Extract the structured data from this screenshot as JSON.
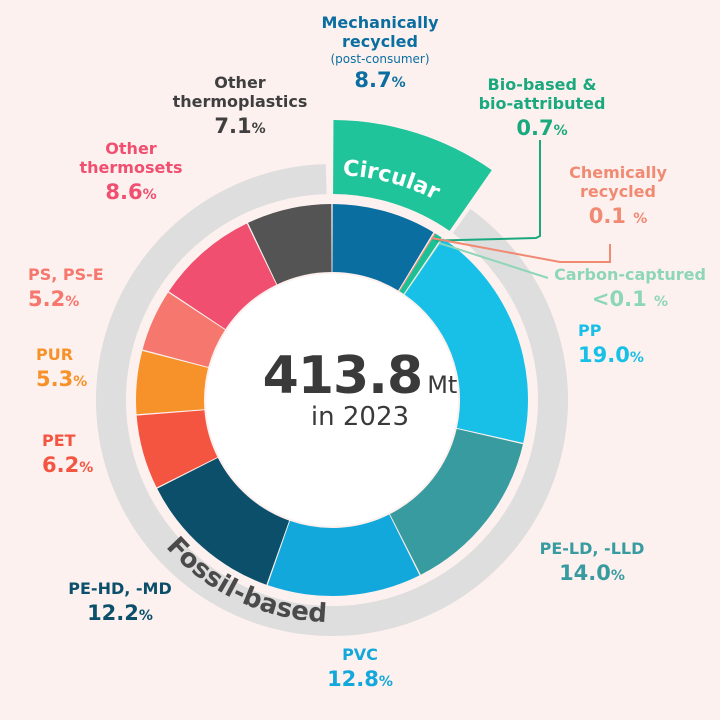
{
  "chart_data": {
    "type": "donut",
    "title_value": "413.8",
    "title_unit": "Mt",
    "title_sub": "in 2023",
    "groups": [
      {
        "name": "Circular",
        "share": 9.5
      },
      {
        "name": "Fossil-based",
        "share": 90.5
      }
    ],
    "segments": [
      {
        "name": "Mechanically recycled",
        "sublabel": "(post-consumer)",
        "value": 8.7,
        "value_text": "8.7",
        "color": "#0b6ea0",
        "group": "Circular"
      },
      {
        "name": "Chemically recycled",
        "value": 0.1,
        "value_text": "0.1",
        "color": "#f08a73",
        "group": "Circular"
      },
      {
        "name": "Bio-based & bio-attributed",
        "value": 0.7,
        "value_text": "0.7",
        "color": "#1dbf95",
        "group": "Circular"
      },
      {
        "name": "Carbon-captured",
        "value": 0.05,
        "value_text": "<0.1",
        "color": "#8ed6b8",
        "group": "Circular"
      },
      {
        "name": "PP",
        "value": 19.0,
        "value_text": "19.0",
        "color": "#18c0e8",
        "group": "Fossil-based"
      },
      {
        "name": "PE-LD, -LLD",
        "value": 14.0,
        "value_text": "14.0",
        "color": "#389ba0",
        "group": "Fossil-based"
      },
      {
        "name": "PVC",
        "value": 12.8,
        "value_text": "12.8",
        "color": "#12a8db",
        "group": "Fossil-based"
      },
      {
        "name": "PE-HD, -MD",
        "value": 12.2,
        "value_text": "12.2",
        "color": "#0b4f6b",
        "group": "Fossil-based"
      },
      {
        "name": "PET",
        "value": 6.2,
        "value_text": "6.2",
        "color": "#f45540",
        "group": "Fossil-based"
      },
      {
        "name": "PUR",
        "value": 5.3,
        "value_text": "5.3",
        "color": "#f7922a",
        "group": "Fossil-based"
      },
      {
        "name": "PS, PS-E",
        "value": 5.2,
        "value_text": "5.2",
        "color": "#f5776d",
        "group": "Fossil-based"
      },
      {
        "name": "Other thermosets",
        "value": 8.6,
        "value_text": "8.6",
        "color": "#f04f70",
        "group": "Fossil-based"
      },
      {
        "name": "Other thermoplastics",
        "value": 7.1,
        "value_text": "7.1",
        "color": "#545454",
        "group": "Fossil-based"
      }
    ],
    "unit_symbol": "%"
  },
  "labels": {
    "mech_1": "Mechanically",
    "mech_2": "recycled",
    "mech_sub": "(post-consumer)",
    "bio_1": "Bio-based &",
    "bio_2": "bio-attributed",
    "chem_1": "Chemically",
    "chem_2": "recycled",
    "carbon": "Carbon-captured",
    "pp": "PP",
    "peld": "PE-LD, -LLD",
    "pvc": "PVC",
    "pehd": "PE-HD, -MD",
    "pet": "PET",
    "pur": "PUR",
    "ps": "PS, PS-E",
    "otherset_1": "Other",
    "otherset_2": "thermosets",
    "otherplast_1": "Other",
    "otherplast_2": "thermoplastics"
  },
  "colors": {
    "background": "#fdf1ef",
    "outer_ring": "#dedede",
    "circular_wedge": "#1fc49a",
    "fossil_text": "#4a4a4a",
    "center_text": "#3a3a3a"
  }
}
